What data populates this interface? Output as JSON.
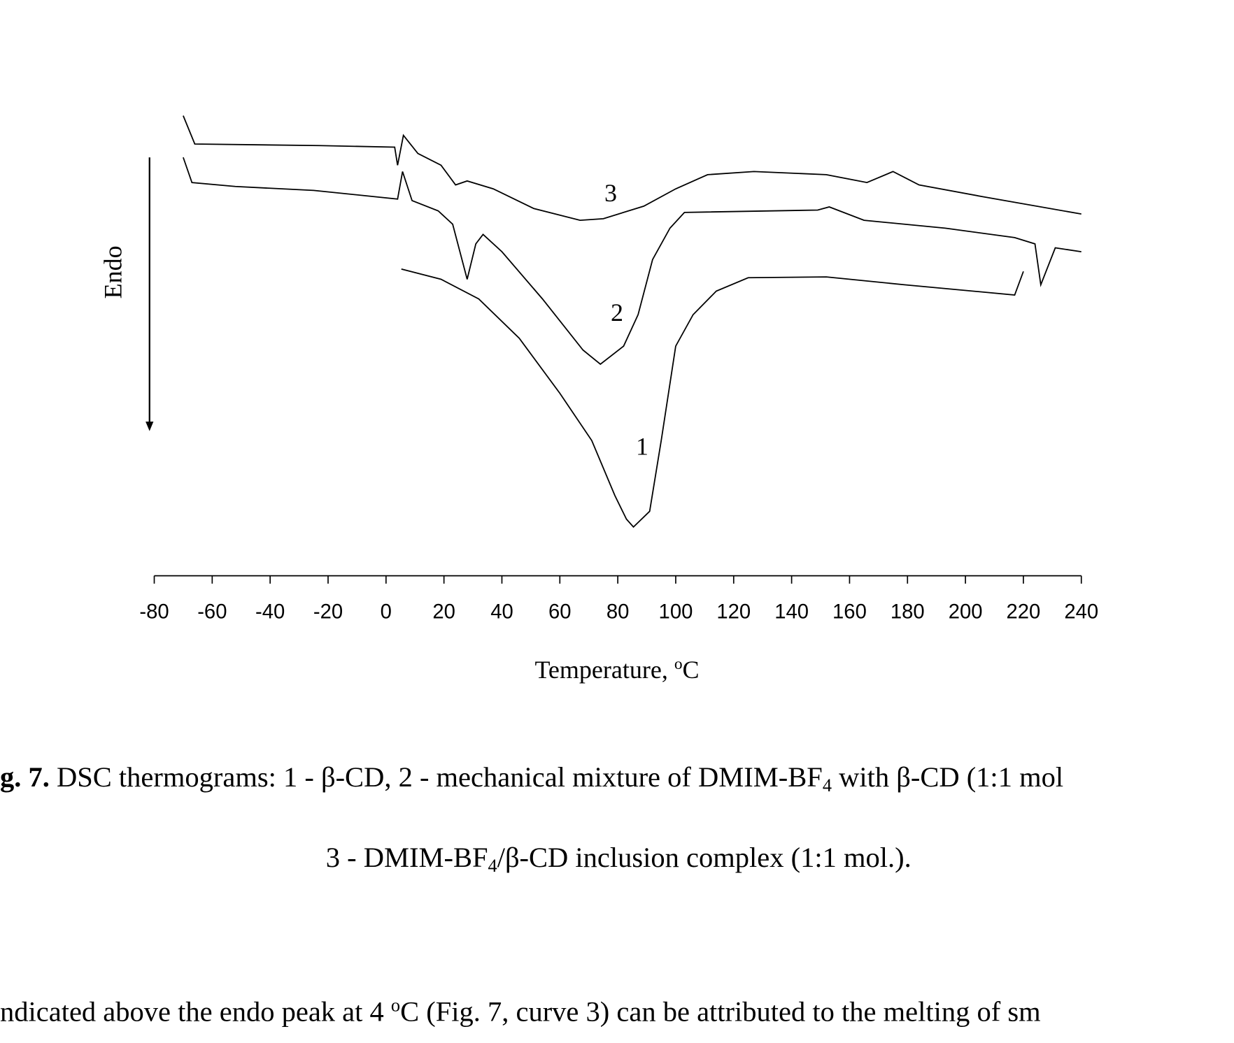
{
  "chart_data": {
    "type": "line",
    "ylabel": "Endo",
    "xlabel": [
      "Temperature, ",
      "o",
      "C"
    ],
    "xlim": [
      -80,
      240
    ],
    "xticks": [
      -80,
      -60,
      -40,
      -20,
      0,
      20,
      40,
      60,
      80,
      100,
      120,
      140,
      160,
      180,
      200,
      220,
      240
    ],
    "ylim": [
      0,
      600
    ],
    "color": "#000000",
    "series": [
      {
        "name": "1",
        "x": [
          5.3,
          19,
          32,
          46,
          60,
          71,
          79,
          83,
          85.4,
          91,
          95,
          100,
          106,
          114,
          125,
          152,
          179,
          217,
          220
        ],
        "values": [
          390,
          377,
          352,
          302,
          232,
          172,
          102,
          72,
          62,
          82,
          172,
          292,
          332,
          362,
          379,
          380,
          370,
          357,
          387
        ]
      },
      {
        "name": "2",
        "x": [
          -70,
          -67,
          -52,
          -25,
          4,
          5.7,
          9,
          18,
          23,
          28,
          31,
          33.5,
          40,
          54,
          68,
          74,
          82,
          87,
          92,
          98,
          103,
          149,
          153,
          165,
          193,
          217,
          224,
          226,
          231,
          240
        ],
        "values": [
          532,
          500,
          495,
          490,
          479,
          514,
          477,
          464,
          447,
          377,
          422,
          434,
          412,
          352,
          287,
          269,
          292,
          332,
          402,
          442,
          462,
          465,
          469,
          452,
          442,
          430,
          422,
          370,
          417,
          412
        ]
      },
      {
        "name": "3",
        "x": [
          -70,
          -66,
          -23,
          3,
          4,
          6,
          11,
          19,
          24,
          28,
          37,
          51,
          67,
          75,
          89,
          100,
          111,
          127,
          152,
          166,
          175,
          184,
          206,
          240
        ],
        "values": [
          585,
          549,
          547,
          545,
          522,
          560,
          537,
          522,
          497,
          502,
          492,
          467,
          452,
          454,
          470,
          492,
          510,
          514,
          510,
          500,
          514,
          497,
          482,
          460
        ]
      }
    ]
  },
  "caption": {
    "label": "g. 7.",
    "line1": [
      " DSC thermograms: 1 - β-CD, 2 - mechanical mixture of DMIM-BF",
      "4",
      " with β-CD (1:1 mol"
    ],
    "line2": [
      "3 - DMIM-BF",
      "4",
      "/β-CD inclusion complex (1:1 mol.)."
    ]
  },
  "body": {
    "text": [
      "ndicated above the endo peak at 4 ",
      "o",
      "C (Fig. 7, curve 3) can be attributed to the melting of sm"
    ]
  }
}
